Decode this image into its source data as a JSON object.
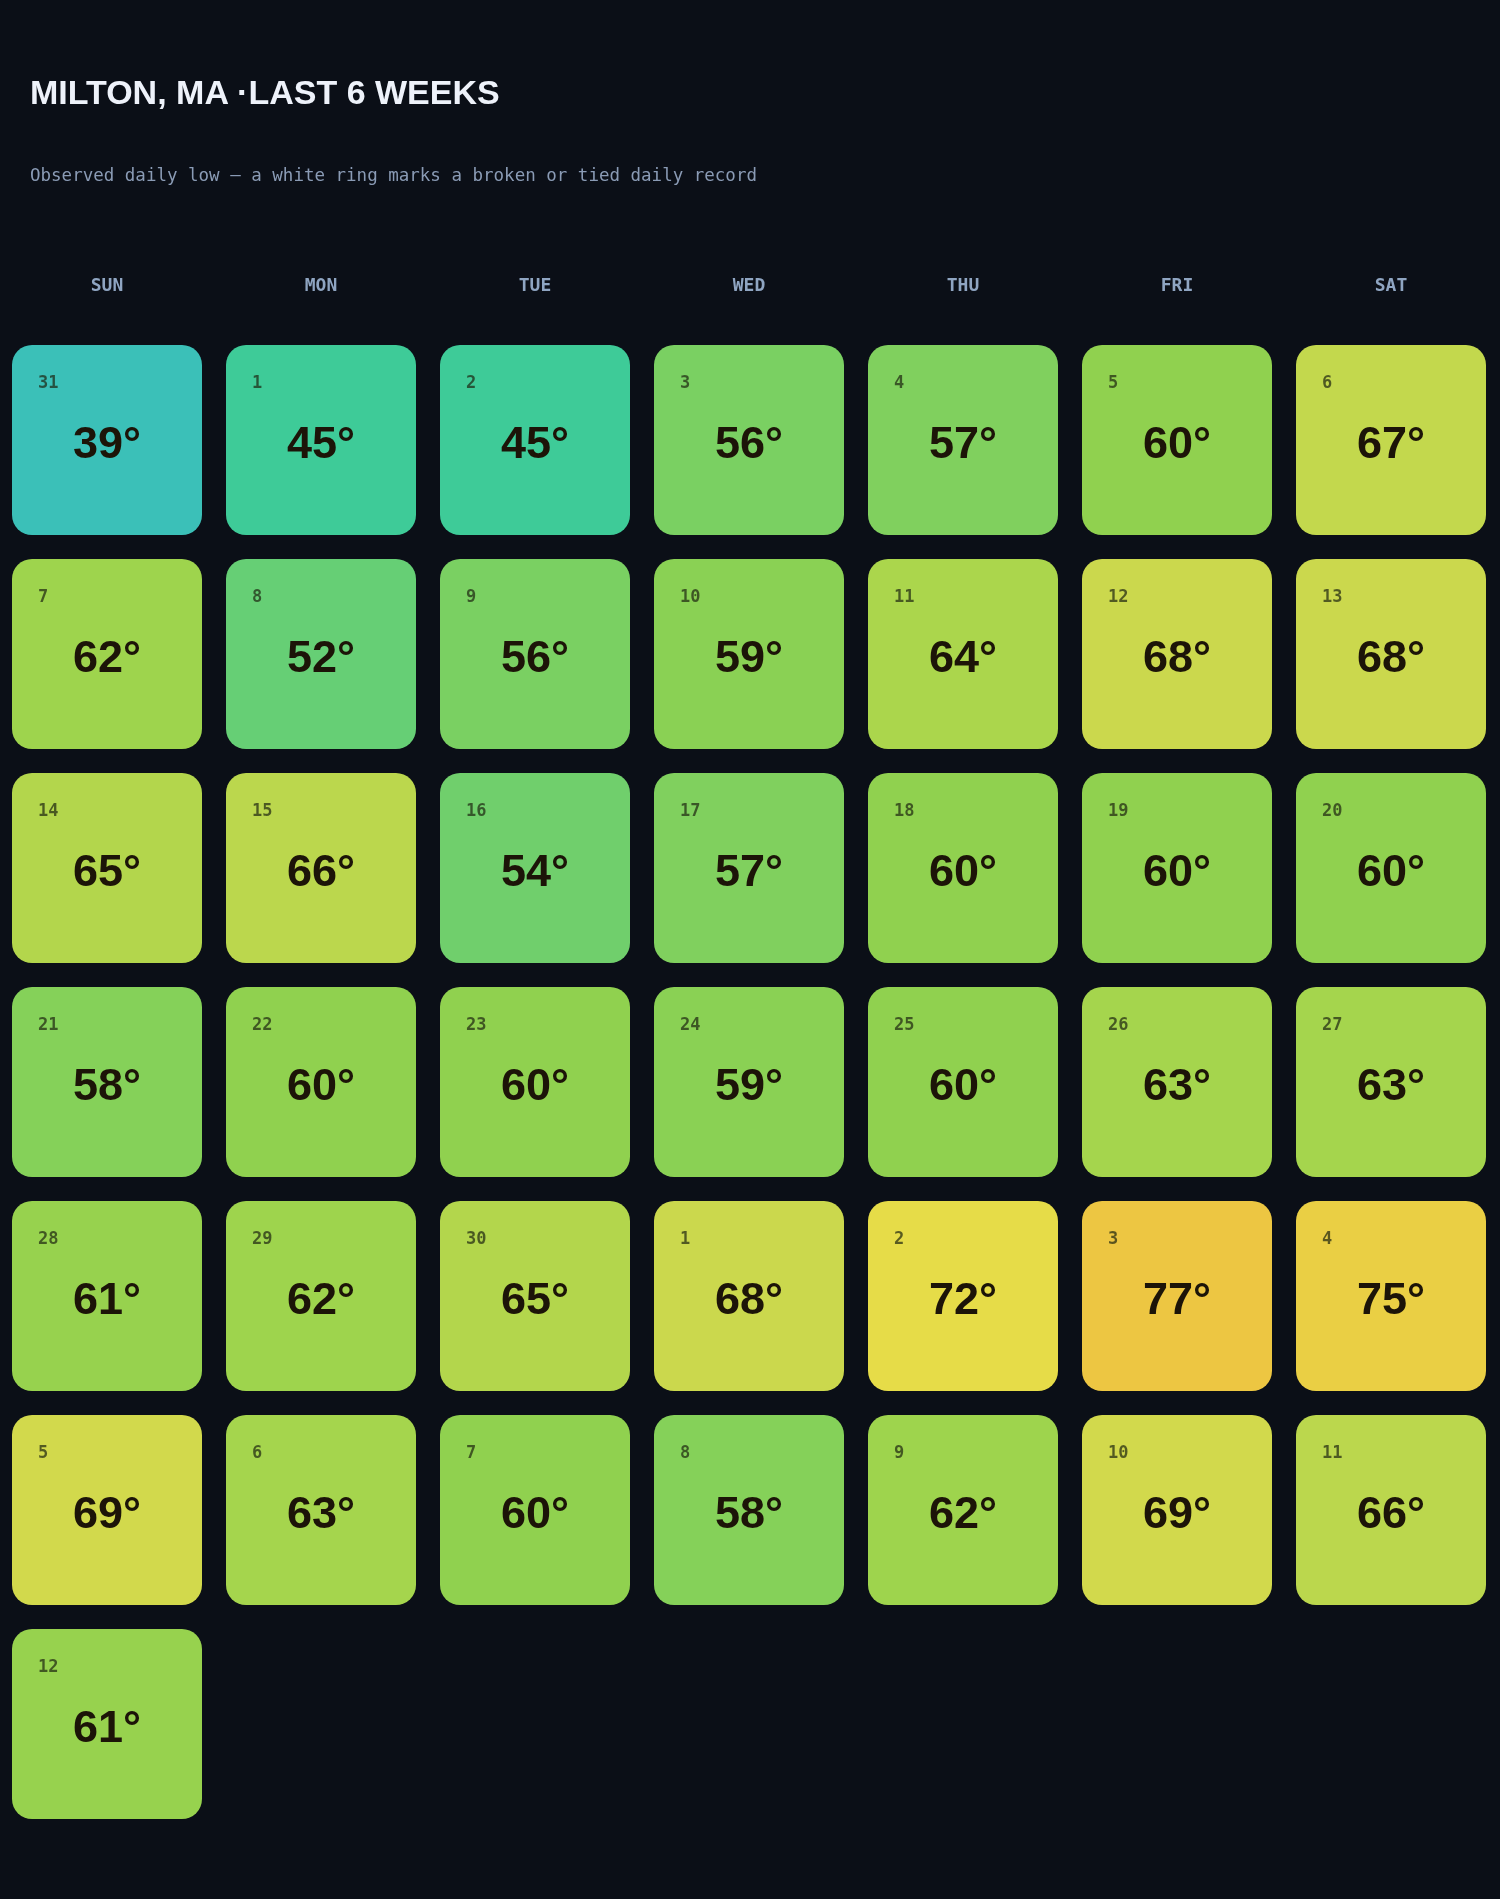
{
  "chart_data": {
    "type": "heatmap",
    "title": "MILTON, MA ·LAST 6 WEEKS",
    "subtitle": "Observed daily low — a white ring marks a broken or tied daily record",
    "categories": [
      "SUN",
      "MON",
      "TUE",
      "WED",
      "THU",
      "FRI",
      "SAT"
    ],
    "y_categories": [
      null,
      null,
      null,
      null,
      null,
      null,
      null
    ],
    "cells": [
      [
        39,
        45,
        45,
        56,
        57,
        60,
        67
      ],
      [
        62,
        52,
        56,
        59,
        64,
        68,
        68
      ],
      [
        65,
        66,
        54,
        57,
        60,
        60,
        60
      ],
      [
        58,
        60,
        60,
        59,
        60,
        63,
        63
      ],
      [
        61,
        62,
        65,
        68,
        72,
        77,
        75
      ],
      [
        69,
        63,
        60,
        58,
        62,
        69,
        66
      ],
      [
        61,
        null,
        null,
        null,
        null,
        null,
        null
      ]
    ],
    "cell_labels": [
      [
        "39°",
        "45°",
        "45°",
        "56°",
        "57°",
        "60°",
        "67°"
      ],
      [
        "62°",
        "52°",
        "56°",
        "59°",
        "64°",
        "68°",
        "68°"
      ],
      [
        "65°",
        "66°",
        "54°",
        "57°",
        "60°",
        "60°",
        "60°"
      ],
      [
        "58°",
        "60°",
        "60°",
        "59°",
        "60°",
        "63°",
        "63°"
      ],
      [
        "61°",
        "62°",
        "65°",
        "68°",
        "72°",
        "77°",
        "75°"
      ],
      [
        "69°",
        "63°",
        "60°",
        "58°",
        "62°",
        "69°",
        "66°"
      ],
      [
        "61°",
        null,
        null,
        null,
        null,
        null,
        null
      ]
    ],
    "annotations": [
      "31",
      "1",
      "2",
      "3",
      "4",
      "5",
      "6",
      "7",
      "8",
      "9",
      "10",
      "11",
      "12",
      "13",
      "14",
      "15",
      "16",
      "17",
      "18",
      "19",
      "20",
      "21",
      "22",
      "23",
      "24",
      "25",
      "26",
      "27",
      "28",
      "29",
      "30",
      "1",
      "2",
      "3",
      "4",
      "5",
      "6",
      "7",
      "8",
      "9",
      "10",
      "11",
      "12"
    ]
  }
}
